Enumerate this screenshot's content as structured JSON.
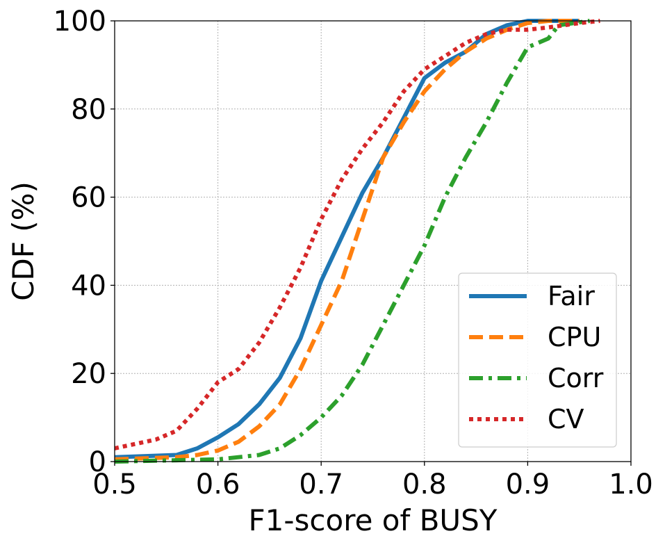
{
  "chart_data": {
    "type": "line",
    "title": "",
    "xlabel": "F1-score of BUSY",
    "ylabel": "CDF (%)",
    "xlim": [
      0.5,
      1.0
    ],
    "ylim": [
      0,
      100
    ],
    "xticks": [
      "0.5",
      "0.6",
      "0.7",
      "0.8",
      "0.9",
      "1.0"
    ],
    "yticks": [
      "0",
      "20",
      "40",
      "60",
      "80",
      "100"
    ],
    "grid": true,
    "legend_position": "lower-right",
    "series": [
      {
        "name": "Fair",
        "color": "#1f77b4",
        "style": "solid",
        "x": [
          0.5,
          0.56,
          0.58,
          0.6,
          0.62,
          0.64,
          0.66,
          0.68,
          0.7,
          0.72,
          0.74,
          0.76,
          0.78,
          0.8,
          0.82,
          0.84,
          0.86,
          0.88,
          0.9,
          0.92,
          0.95
        ],
        "y": [
          1,
          1.5,
          3,
          5.5,
          8.5,
          13,
          19,
          28,
          41,
          51,
          61,
          69,
          78,
          87,
          90.5,
          93,
          97,
          99,
          100,
          100,
          100
        ]
      },
      {
        "name": "CPU",
        "color": "#ff7f0e",
        "style": "dashed",
        "x": [
          0.5,
          0.56,
          0.58,
          0.6,
          0.62,
          0.64,
          0.66,
          0.68,
          0.7,
          0.72,
          0.74,
          0.76,
          0.78,
          0.8,
          0.82,
          0.84,
          0.86,
          0.88,
          0.9,
          0.92,
          0.95
        ],
        "y": [
          0.5,
          1,
          1.5,
          2.5,
          4.5,
          8,
          13,
          21,
          31,
          41,
          55,
          69,
          77,
          84,
          89,
          93,
          96,
          98,
          99.5,
          100,
          100
        ]
      },
      {
        "name": "Corr",
        "color": "#2ca02c",
        "style": "dashdot",
        "x": [
          0.5,
          0.6,
          0.64,
          0.66,
          0.68,
          0.7,
          0.72,
          0.74,
          0.76,
          0.78,
          0.8,
          0.82,
          0.84,
          0.86,
          0.88,
          0.9,
          0.92,
          0.93,
          0.96
        ],
        "y": [
          0,
          0.5,
          1.5,
          3,
          6,
          10,
          15,
          22,
          31,
          40,
          49,
          60,
          69,
          77,
          86,
          94,
          96,
          99,
          100
        ]
      },
      {
        "name": "CV",
        "color": "#d62728",
        "style": "dotted",
        "x": [
          0.5,
          0.54,
          0.56,
          0.58,
          0.6,
          0.62,
          0.64,
          0.66,
          0.68,
          0.7,
          0.72,
          0.74,
          0.76,
          0.78,
          0.8,
          0.82,
          0.84,
          0.86,
          0.88,
          0.9,
          0.92,
          0.95,
          0.97
        ],
        "y": [
          3,
          5,
          7,
          12,
          18,
          21,
          27,
          35,
          44,
          55,
          64,
          71,
          77,
          84,
          89,
          92,
          95,
          97,
          98,
          98,
          98.5,
          99.5,
          100
        ]
      }
    ]
  }
}
